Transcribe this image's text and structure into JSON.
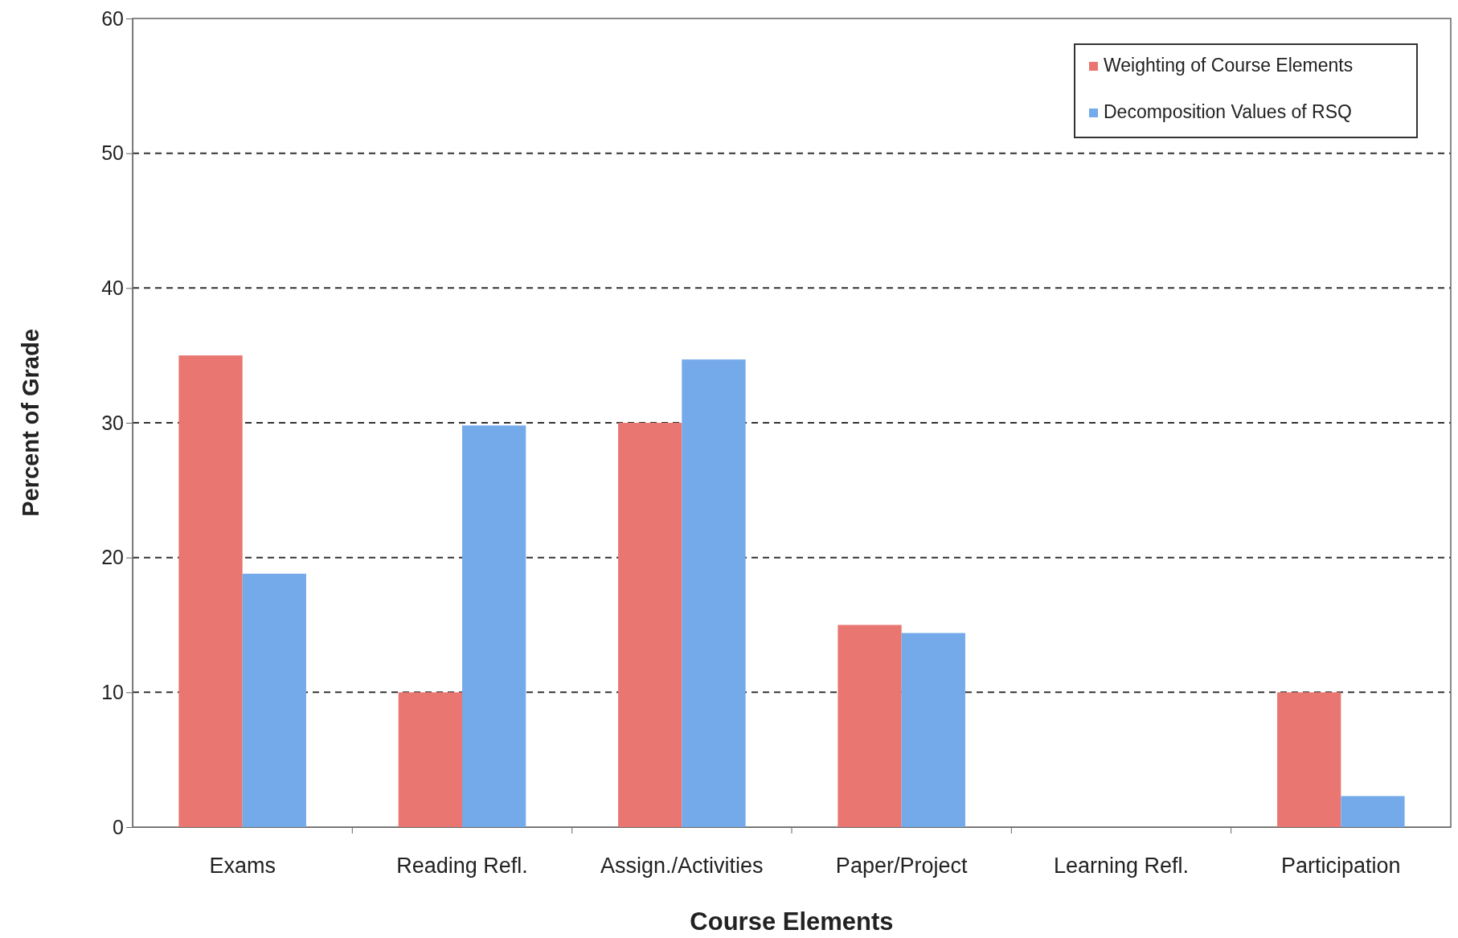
{
  "chart_data": {
    "type": "bar",
    "xlabel": "Course Elements",
    "ylabel": "Percent of Grade",
    "categories": [
      "Exams",
      "Reading Refl.",
      "Assign./Activities",
      "Paper/Project",
      "Learning Refl.",
      "Participation"
    ],
    "series": [
      {
        "name": "Weighting of Course Elements",
        "color": "#e97670",
        "values": [
          35,
          10,
          30,
          15,
          0,
          10
        ]
      },
      {
        "name": "Decomposition Values of RSQ",
        "color": "#74aaea",
        "values": [
          18.8,
          29.8,
          34.7,
          14.4,
          0,
          2.3
        ]
      }
    ],
    "ylim": [
      0,
      60
    ],
    "yticks": [
      0,
      10,
      20,
      30,
      40,
      50,
      60
    ],
    "grid": "y",
    "legend": "top right"
  }
}
